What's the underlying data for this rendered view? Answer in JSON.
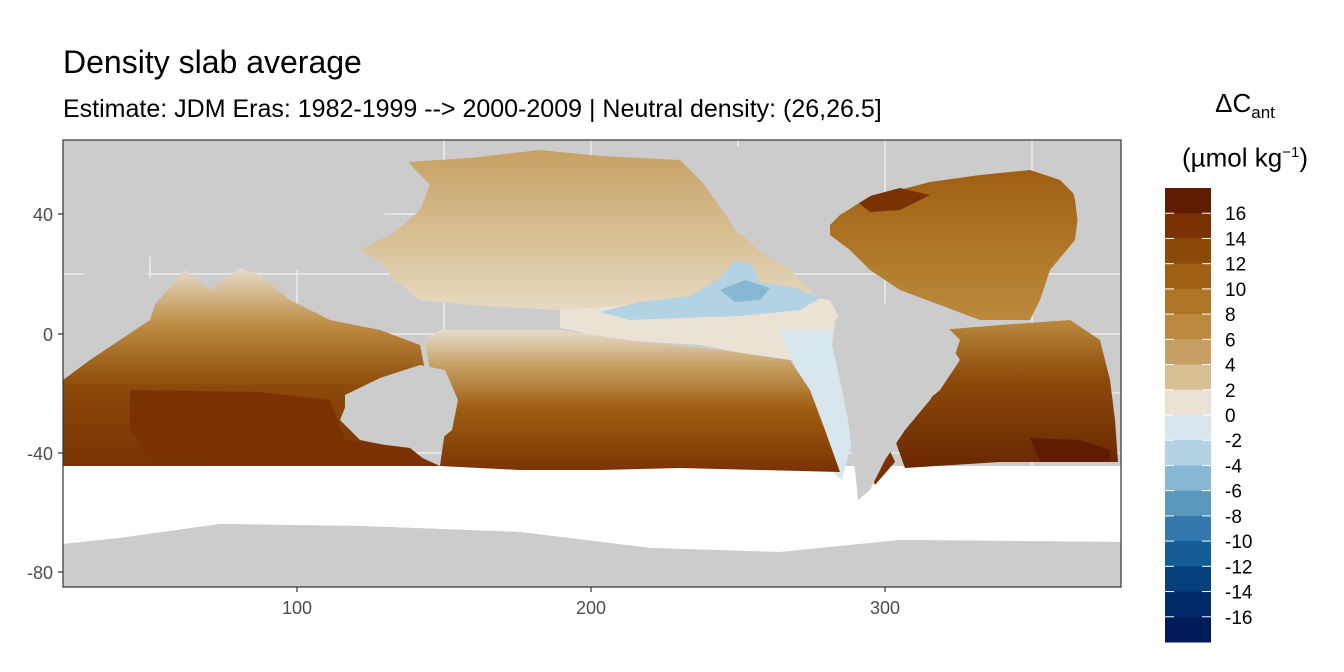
{
  "title": "Density slab average",
  "subtitle": "Estimate: JDM Eras: 1982-1999 --> 2000-2009 | Neutral density: (26,26.5]",
  "legend": {
    "title_main": "ΔC",
    "title_sub": "ant",
    "unit_prefix": "(µmol kg",
    "unit_sup": "−1",
    "unit_suffix": ")",
    "labels": [
      "16",
      "14",
      "12",
      "10",
      "8",
      "6",
      "4",
      "2",
      "0",
      "-2",
      "-4",
      "-6",
      "-8",
      "-10",
      "-12",
      "-14",
      "-16"
    ],
    "colors": [
      "#5e1d02",
      "#7a3203",
      "#8c4a0a",
      "#a05f12",
      "#ae7624",
      "#bb8a3e",
      "#c6a062",
      "#d7bf93",
      "#eae2d4",
      "#d8e6ee",
      "#b3d2e3",
      "#86b7d3",
      "#5a98c0",
      "#3378ad",
      "#155d97",
      "#053f7c",
      "#002b69",
      "#001a5a"
    ]
  },
  "axes": {
    "x_ticks": [
      "100",
      "200",
      "300"
    ],
    "y_ticks": [
      "40",
      "0",
      "-40",
      "-80"
    ]
  },
  "colors": {
    "land": "#cccccc",
    "no_data": "#ffffff",
    "grid": "#ebebeb",
    "panel_border": "#333333"
  },
  "chart_data": {
    "type": "heatmap",
    "title": "Density slab average",
    "subtitle": "Estimate: JDM Eras: 1982-1999 --> 2000-2009 | Neutral density: (26,26.5]",
    "x_label": "",
    "y_label": "",
    "xlim": [
      20,
      380
    ],
    "ylim": [
      -85,
      65
    ],
    "x_ticks": [
      100,
      200,
      300
    ],
    "y_ticks": [
      40,
      0,
      -40,
      -80
    ],
    "variable": "ΔC_ant",
    "unit": "µmol kg−1",
    "color_breaks": [
      16,
      14,
      12,
      10,
      8,
      6,
      4,
      2,
      0,
      -2,
      -4,
      -6,
      -8,
      -10,
      -12,
      -14,
      -16
    ],
    "grid": true,
    "legend_position": "right"
  }
}
